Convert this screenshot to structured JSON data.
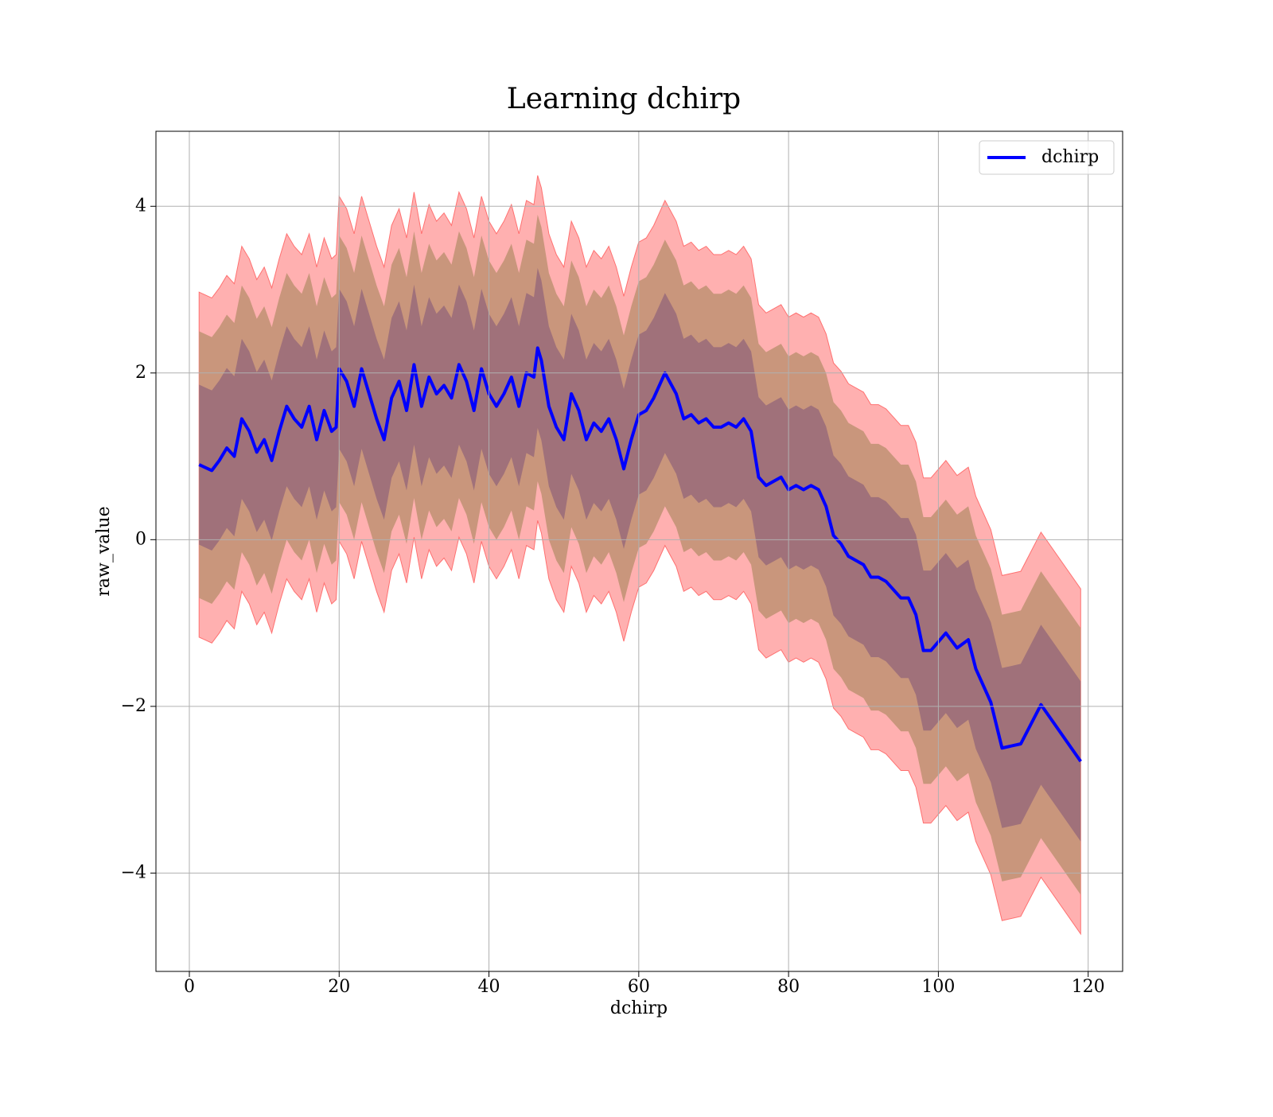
{
  "chart_data": {
    "type": "line",
    "title": "Learning dchirp",
    "xlabel": "dchirp",
    "ylabel": "raw_value",
    "x": [
      1.3,
      3,
      4,
      5,
      6,
      7,
      8,
      9,
      10,
      11,
      12,
      13,
      14,
      15,
      16,
      17,
      18,
      19,
      19.6,
      20,
      21,
      22,
      23,
      24,
      25,
      26,
      27,
      28,
      29,
      30,
      31,
      32,
      33,
      34,
      35,
      36,
      37,
      38,
      39,
      40,
      41,
      42,
      43,
      44,
      45,
      46,
      46.5,
      47,
      48,
      49,
      50,
      51,
      52,
      53,
      54,
      55,
      56,
      57,
      58,
      59,
      60,
      61,
      62,
      63.5,
      65,
      66,
      67,
      68,
      69,
      70,
      71,
      72,
      73,
      74,
      75,
      76,
      77,
      78,
      79,
      80,
      81,
      82,
      83,
      84,
      85,
      86,
      87,
      88,
      89,
      90,
      91,
      92,
      93,
      94,
      95,
      96,
      97,
      98,
      99,
      101,
      102.5,
      104,
      105,
      107,
      108.5,
      111,
      113.7,
      119
    ],
    "series": [
      {
        "name": "dchirp",
        "color": "#0000ff",
        "values": [
          0.9,
          0.83,
          0.95,
          1.1,
          1.0,
          1.45,
          1.3,
          1.05,
          1.2,
          0.95,
          1.3,
          1.6,
          1.45,
          1.35,
          1.6,
          1.2,
          1.55,
          1.3,
          1.35,
          2.05,
          1.9,
          1.6,
          2.05,
          1.75,
          1.45,
          1.2,
          1.7,
          1.9,
          1.55,
          2.1,
          1.6,
          1.95,
          1.75,
          1.85,
          1.7,
          2.1,
          1.9,
          1.55,
          2.05,
          1.75,
          1.6,
          1.75,
          1.95,
          1.6,
          2.0,
          1.95,
          2.3,
          2.15,
          1.6,
          1.35,
          1.2,
          1.75,
          1.55,
          1.2,
          1.4,
          1.3,
          1.45,
          1.2,
          0.85,
          1.2,
          1.5,
          1.55,
          1.7,
          2.0,
          1.75,
          1.45,
          1.5,
          1.4,
          1.45,
          1.35,
          1.35,
          1.4,
          1.35,
          1.45,
          1.3,
          0.75,
          0.65,
          0.7,
          0.75,
          0.6,
          0.65,
          0.6,
          0.65,
          0.6,
          0.4,
          0.05,
          -0.05,
          -0.2,
          -0.25,
          -0.3,
          -0.45,
          -0.45,
          -0.5,
          -0.6,
          -0.7,
          -0.7,
          -0.9,
          -1.33,
          -1.33,
          -1.12,
          -1.3,
          -1.2,
          -1.55,
          -1.95,
          -2.5,
          -2.45,
          -1.98,
          -2.66
        ]
      }
    ],
    "bands": [
      {
        "color": "#ffb0b0",
        "edge": "#ff7070",
        "spread": 2.07
      },
      {
        "color": "#c9967c",
        "spread": 1.6
      },
      {
        "color": "#a0717a",
        "spread": 0.96
      }
    ],
    "xlim": [
      -4.46,
      124.6
    ],
    "ylim": [
      -5.18,
      4.9
    ],
    "xticks": [
      0,
      20,
      40,
      60,
      80,
      100,
      120
    ],
    "yticks": [
      {
        "value": -4,
        "label": "−4"
      },
      {
        "value": -2,
        "label": "−2"
      },
      0,
      2,
      4
    ],
    "grid": true,
    "legend": "upper right"
  }
}
